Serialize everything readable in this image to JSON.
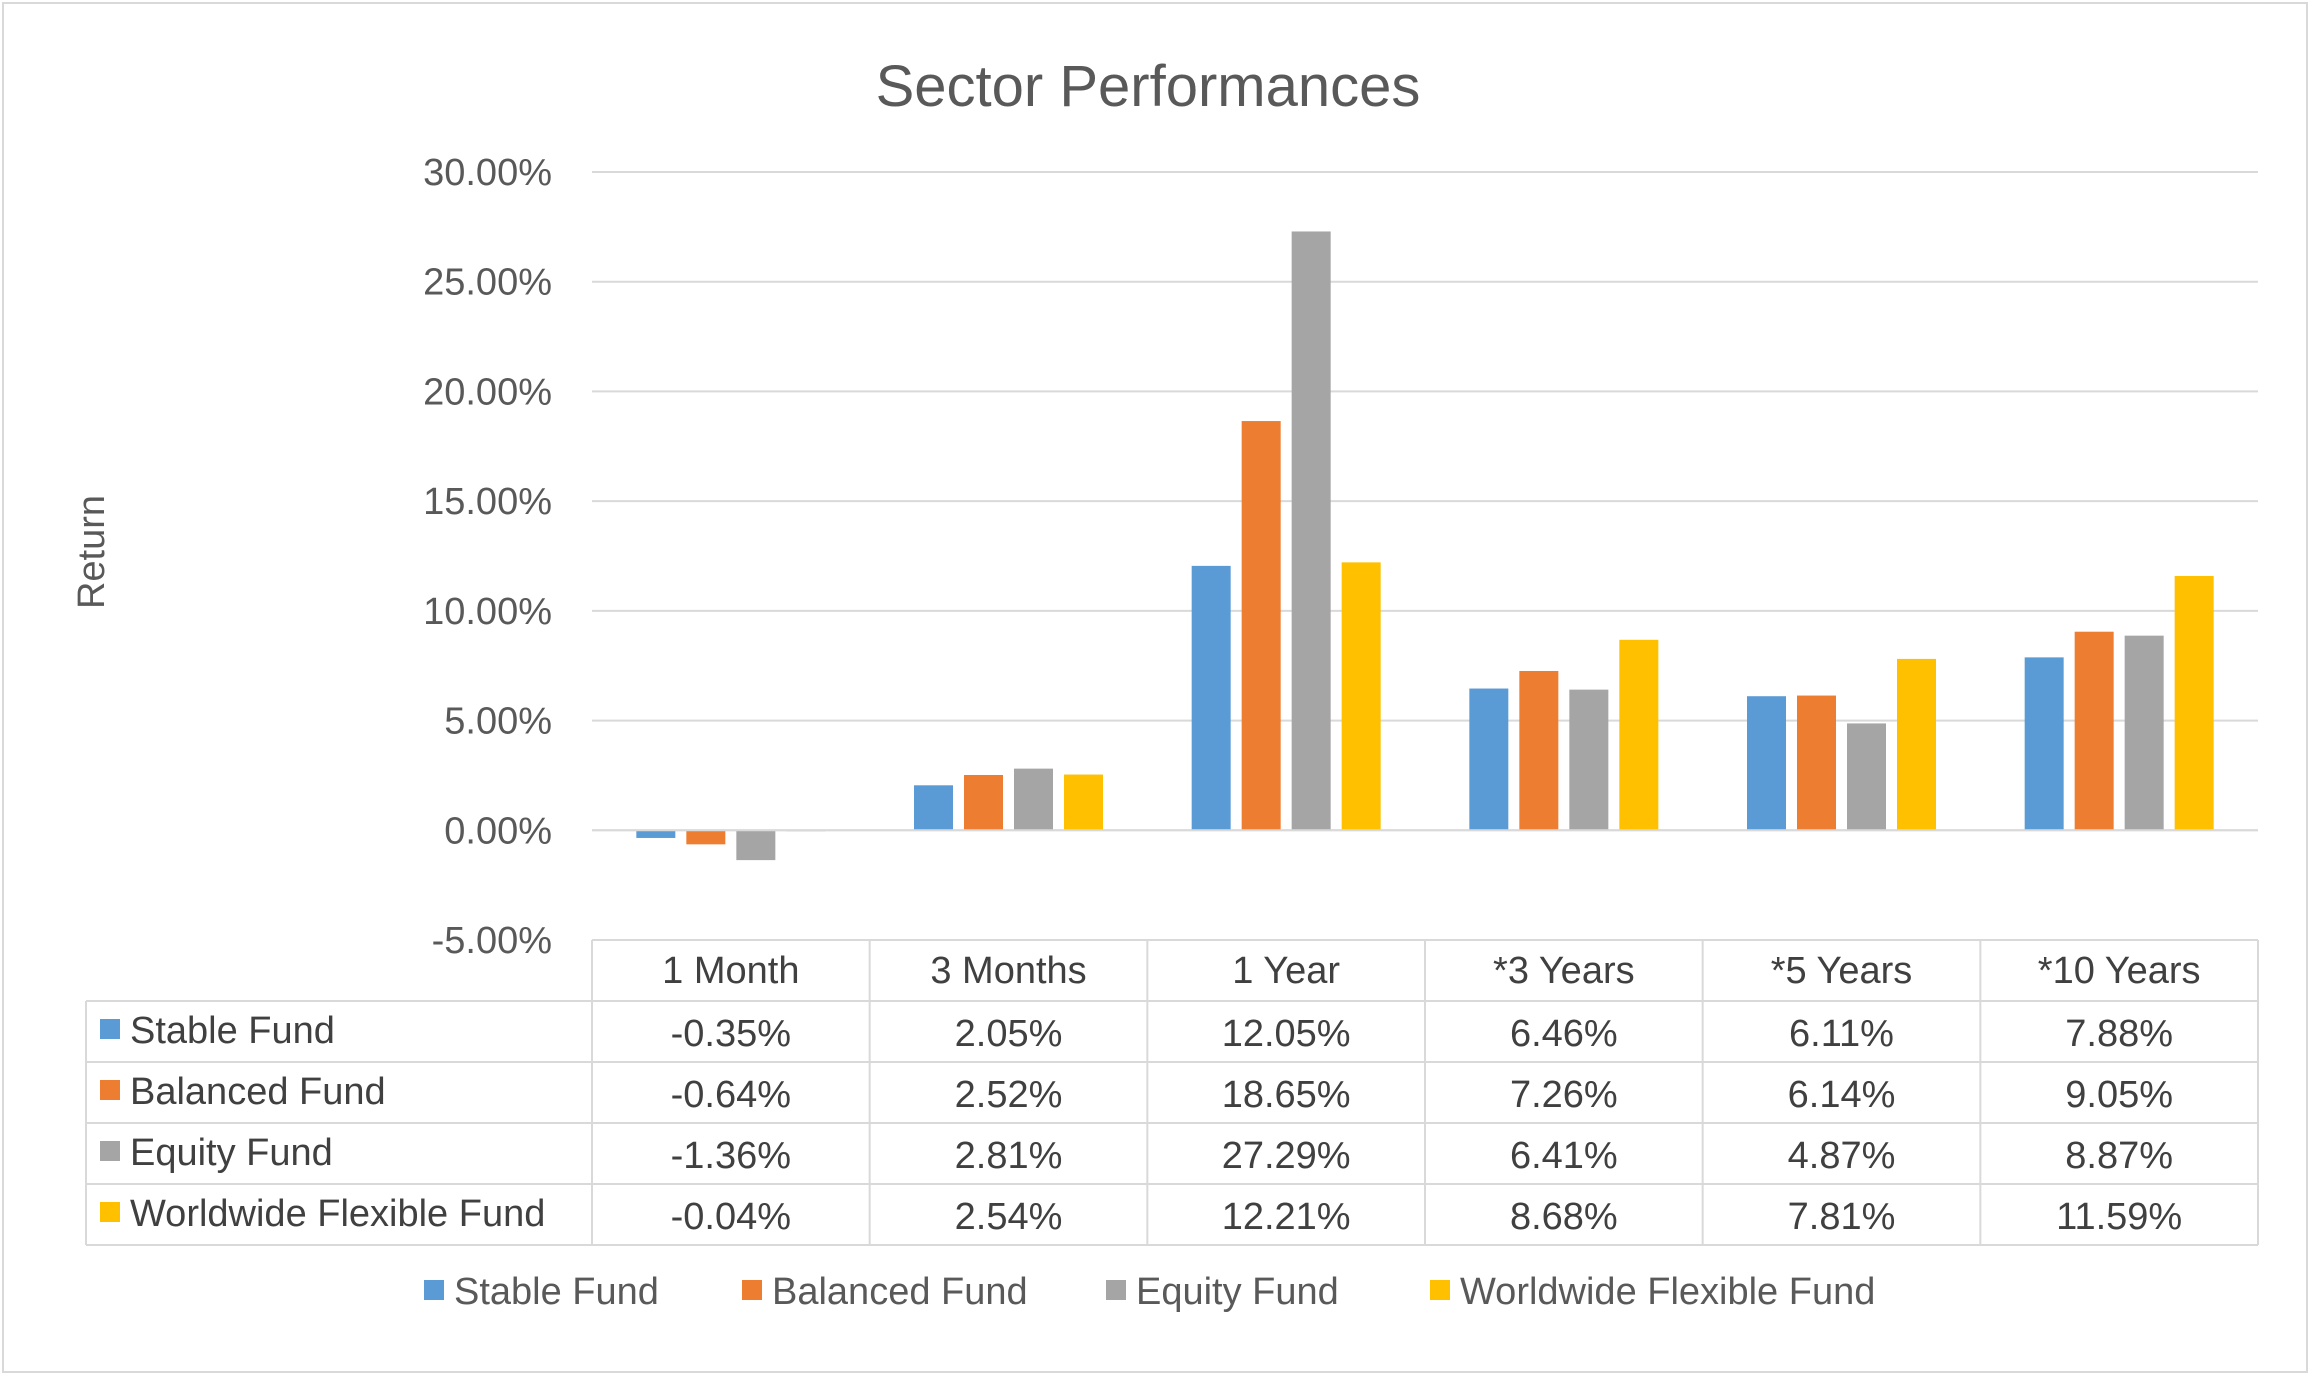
{
  "chart_data": {
    "type": "bar",
    "title": "Sector Performances",
    "xlabel": "",
    "ylabel": "Return",
    "ylim": [
      -0.05,
      0.3
    ],
    "yticks": [
      -0.05,
      0.0,
      0.05,
      0.1,
      0.15,
      0.2,
      0.25,
      0.3
    ],
    "ytick_labels": [
      "-5.00%",
      "0.00%",
      "5.00%",
      "10.00%",
      "15.00%",
      "20.00%",
      "25.00%",
      "30.00%"
    ],
    "grid": true,
    "legend_position": "bottom",
    "data_table": true,
    "categories": [
      "1 Month",
      "3 Months",
      "1 Year",
      "*3 Years",
      "*5 Years",
      "*10 Years"
    ],
    "series": [
      {
        "name": "Stable Fund",
        "color": "#5b9bd5",
        "values": [
          -0.0035,
          0.0205,
          0.1205,
          0.0646,
          0.0611,
          0.0788
        ],
        "labels": [
          "-0.35%",
          "2.05%",
          "12.05%",
          "6.46%",
          "6.11%",
          "7.88%"
        ]
      },
      {
        "name": "Balanced Fund",
        "color": "#ed7d31",
        "values": [
          -0.0064,
          0.0252,
          0.1865,
          0.0726,
          0.0614,
          0.0905
        ],
        "labels": [
          "-0.64%",
          "2.52%",
          "18.65%",
          "7.26%",
          "6.14%",
          "9.05%"
        ]
      },
      {
        "name": "Equity Fund",
        "color": "#a5a5a5",
        "values": [
          -0.0136,
          0.0281,
          0.2729,
          0.0641,
          0.0487,
          0.0887
        ],
        "labels": [
          "-1.36%",
          "2.81%",
          "27.29%",
          "6.41%",
          "4.87%",
          "8.87%"
        ]
      },
      {
        "name": "Worldwide Flexible Fund",
        "color": "#ffc000",
        "values": [
          -0.0004,
          0.0254,
          0.1221,
          0.0868,
          0.0781,
          0.1159
        ],
        "labels": [
          "-0.04%",
          "2.54%",
          "12.21%",
          "8.68%",
          "7.81%",
          "11.59%"
        ]
      }
    ]
  }
}
